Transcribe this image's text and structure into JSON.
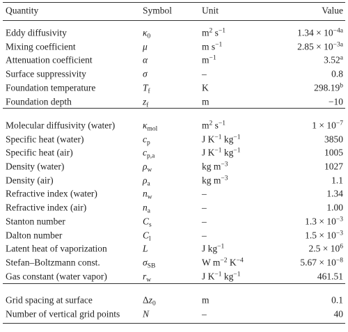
{
  "table": {
    "header": [
      "Quantity",
      "Symbol",
      "Unit",
      "Value"
    ],
    "groups": [
      [
        [
          "Eddy diffusivity",
          [
            {
              "it": "κ"
            },
            {
              "sub": "0"
            }
          ],
          [
            "m",
            {
              "sup": "2"
            },
            " s",
            {
              "sup": "−1"
            }
          ],
          [
            "1.34 × 10",
            {
              "sup": "−4a"
            }
          ]
        ],
        [
          "Mixing coefficient",
          [
            {
              "it": "μ"
            }
          ],
          [
            "m s",
            {
              "sup": "−1"
            }
          ],
          [
            "2.85 × 10",
            {
              "sup": "−3a"
            }
          ]
        ],
        [
          "Attenuation coefficient",
          [
            {
              "it": "α"
            }
          ],
          [
            "m",
            {
              "sup": "−1"
            }
          ],
          [
            "3.52",
            {
              "sup": "a"
            }
          ]
        ],
        [
          "Surface suppressivity",
          [
            {
              "it": "σ"
            }
          ],
          [
            "–"
          ],
          [
            "0.8"
          ]
        ],
        [
          "Foundation temperature",
          [
            {
              "it": "T"
            },
            {
              "sub": "f"
            }
          ],
          [
            "K"
          ],
          [
            "298.19",
            {
              "sup": "b"
            }
          ]
        ],
        [
          "Foundation depth",
          [
            {
              "it": "z"
            },
            {
              "sub": "f"
            }
          ],
          [
            "m"
          ],
          [
            "−10"
          ]
        ]
      ],
      [
        [
          "Molecular diffusivity (water)",
          [
            {
              "it": "κ"
            },
            {
              "sub": "mol"
            }
          ],
          [
            "m",
            {
              "sup": "2"
            },
            " s",
            {
              "sup": "−1"
            }
          ],
          [
            "1 × 10",
            {
              "sup": "−7"
            }
          ]
        ],
        [
          "Specific heat (water)",
          [
            {
              "it": "c"
            },
            {
              "sub": "p"
            }
          ],
          [
            "J K",
            {
              "sup": "−1"
            },
            " kg",
            {
              "sup": "−1"
            }
          ],
          [
            "3850"
          ]
        ],
        [
          "Specific heat (air)",
          [
            {
              "it": "c"
            },
            {
              "sub": "p,a"
            }
          ],
          [
            "J K",
            {
              "sup": "−1"
            },
            " kg",
            {
              "sup": "−1"
            }
          ],
          [
            "1005"
          ]
        ],
        [
          "Density (water)",
          [
            {
              "it": "ρ"
            },
            {
              "sub": "w"
            }
          ],
          [
            "kg m",
            {
              "sup": "−3"
            }
          ],
          [
            "1027"
          ]
        ],
        [
          "Density (air)",
          [
            {
              "it": "ρ"
            },
            {
              "sub": "a"
            }
          ],
          [
            "kg m",
            {
              "sup": "−3"
            }
          ],
          [
            "1.1"
          ]
        ],
        [
          "Refractive index (water)",
          [
            {
              "it": "n"
            },
            {
              "sub": "w"
            }
          ],
          [
            "–"
          ],
          [
            "1.34"
          ]
        ],
        [
          "Refractive index (air)",
          [
            {
              "it": "n"
            },
            {
              "sub": "a"
            }
          ],
          [
            "–"
          ],
          [
            "1.00"
          ]
        ],
        [
          "Stanton number",
          [
            {
              "it": "C"
            },
            {
              "sub": "s"
            }
          ],
          [
            "–"
          ],
          [
            "1.3 × 10",
            {
              "sup": "−3"
            }
          ]
        ],
        [
          "Dalton number",
          [
            {
              "it": "C"
            },
            {
              "sub": "l"
            }
          ],
          [
            "–"
          ],
          [
            "1.5 × 10",
            {
              "sup": "−3"
            }
          ]
        ],
        [
          "Latent heat of vaporization",
          [
            {
              "it": "L"
            }
          ],
          [
            "J kg",
            {
              "sup": "−1"
            }
          ],
          [
            "2.5 × 10",
            {
              "sup": "6"
            }
          ]
        ],
        [
          "Stefan–Boltzmann const.",
          [
            {
              "it": "σ"
            },
            {
              "sub": "SB"
            }
          ],
          [
            "W m",
            {
              "sup": "−2"
            },
            " K",
            {
              "sup": "−4"
            }
          ],
          [
            "5.67 × 10",
            {
              "sup": "−8"
            }
          ]
        ],
        [
          "Gas constant (water vapor)",
          [
            {
              "it": "r"
            },
            {
              "sub": "w"
            }
          ],
          [
            "J K",
            {
              "sup": "−1"
            },
            " kg",
            {
              "sup": "−1"
            }
          ],
          [
            "461.51"
          ]
        ]
      ],
      [
        [
          "Grid spacing at surface",
          [
            "Δ",
            {
              "it": "z"
            },
            {
              "sub": "0"
            }
          ],
          [
            "m"
          ],
          [
            "0.1"
          ]
        ],
        [
          "Number of vertical grid points",
          [
            {
              "it": "N"
            }
          ],
          [
            "–"
          ],
          [
            "40"
          ]
        ]
      ]
    ]
  }
}
